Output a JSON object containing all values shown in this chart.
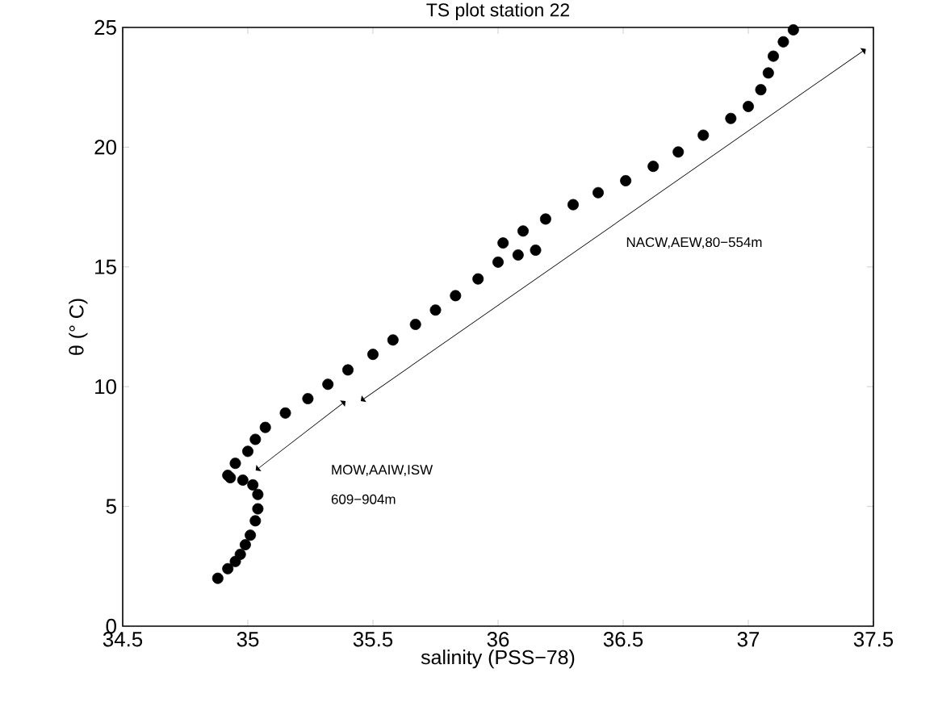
{
  "chart_data": {
    "type": "scatter",
    "title": "TS plot station 22",
    "xlabel": "salinity (PSS−78)",
    "ylabel": "θ (° C)",
    "xlim": [
      34.5,
      37.5
    ],
    "ylim": [
      0,
      25
    ],
    "xticks": [
      34.5,
      35,
      35.5,
      36,
      36.5,
      37,
      37.5
    ],
    "yticks": [
      0,
      5,
      10,
      15,
      20,
      25
    ],
    "grid": false,
    "series": [
      {
        "color": "#000000",
        "x": [
          34.88,
          34.92,
          34.95,
          34.97,
          34.99,
          35.01,
          35.03,
          35.04,
          35.04,
          35.02,
          34.98,
          34.93,
          34.92,
          34.95,
          35.0,
          35.03,
          35.07,
          35.15,
          35.24,
          35.32,
          35.4,
          35.5,
          35.58,
          35.67,
          35.75,
          35.83,
          35.92,
          36.0,
          36.08,
          36.15,
          36.02,
          36.1,
          36.19,
          36.3,
          36.4,
          36.51,
          36.62,
          36.72,
          36.82,
          36.93,
          37.0,
          37.05,
          37.08,
          37.1,
          37.14,
          37.18
        ],
        "values": [
          2.0,
          2.4,
          2.7,
          3.0,
          3.4,
          3.8,
          4.4,
          4.9,
          5.5,
          5.9,
          6.1,
          6.2,
          6.3,
          6.8,
          7.3,
          7.8,
          8.3,
          8.9,
          9.5,
          10.1,
          10.7,
          11.35,
          11.95,
          12.6,
          13.2,
          13.8,
          14.5,
          15.2,
          15.5,
          15.7,
          16.0,
          16.5,
          17.0,
          17.6,
          18.1,
          18.6,
          19.2,
          19.8,
          20.5,
          21.2,
          21.7,
          22.4,
          23.1,
          23.8,
          24.4,
          24.9
        ]
      }
    ],
    "annotations": [
      "NACW,AEW,80−554m",
      "MOW,AAIW,ISW",
      "609−904m"
    ]
  }
}
